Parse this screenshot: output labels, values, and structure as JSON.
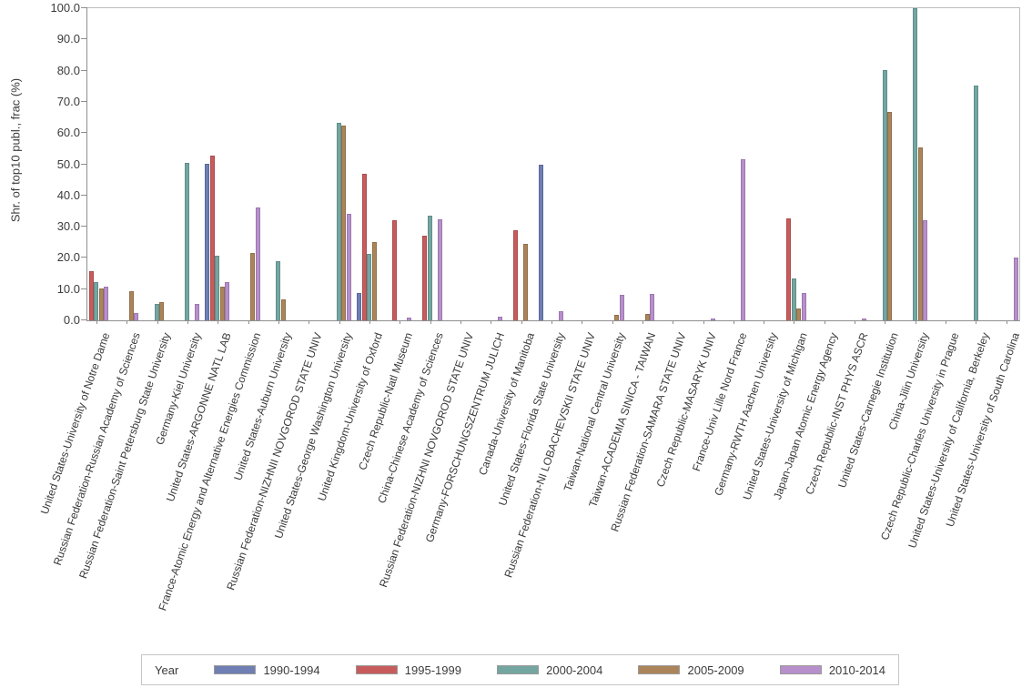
{
  "yaxis": {
    "title": "Shr. of top10 publ., frac (%)",
    "ticks": [
      "0.0",
      "10.0",
      "20.0",
      "30.0",
      "40.0",
      "50.0",
      "60.0",
      "70.0",
      "80.0",
      "90.0",
      "100.0"
    ]
  },
  "legend": {
    "title": "Year"
  },
  "chart_data": {
    "type": "bar",
    "title": "",
    "xlabel": "",
    "ylabel": "Shr. of top10 publ., frac (%)",
    "ylim": [
      0,
      100
    ],
    "ytick_interval": 10,
    "grid": false,
    "legend_position": "bottom",
    "legend_title": "Year",
    "categories": [
      "United States-University of Notre Dame",
      "Russian Federation-Russian Academy of Sciences",
      "Russian Federation-Saint Petersburg State University",
      "Germany-Kiel University",
      "United States-ARGONNE NATL LAB",
      "France-Atomic Energy and Alternative Energies Commission",
      "United States-Auburn University",
      "Russian Federation-NIZHNII NOVGOROD STATE UNIV",
      "United States-George Washington University",
      "United Kingdom-University of Oxford",
      "Czech Republic-Natl Museum",
      "China-Chinese Academy of Sciences",
      "Russian Federation-NIZHNI NOVGOROD STATE UNIV",
      "Germany-FORSCHUNGSZENTRUM JULICH",
      "Canada-University of Manitoba",
      "United States-Florida State University",
      "Russian Federation-NI LOBACHEVSKII STATE UNIV",
      "Taiwan-National Central University",
      "Taiwan-ACADEMIA SINICA - TAIWAN",
      "Russian Federation-SAMARA STATE UNIV",
      "Czech Republic-MASARYK UNIV",
      "France-Univ Lille Nord France",
      "Germany-RWTH Aachen University",
      "United States-University of Michigan",
      "Japan-Japan Atomic Energy Agency",
      "Czech Republic-INST PHYS ASCR",
      "United States-Carnegie Institution",
      "China-Jilin University",
      "Czech Republic-Charles University in Prague",
      "United States-University of California, Berkeley",
      "United States-University of South Carolina"
    ],
    "series": [
      {
        "name": "1990-1994",
        "color": "#6f7eb3",
        "border": "#5b6a99",
        "values": [
          null,
          null,
          null,
          null,
          50.1,
          null,
          null,
          null,
          null,
          8.8,
          null,
          null,
          null,
          null,
          null,
          50.0,
          null,
          null,
          null,
          null,
          null,
          null,
          null,
          null,
          null,
          null,
          null,
          null,
          null,
          null,
          null
        ]
      },
      {
        "name": "1995-1999",
        "color": "#c85c5c",
        "border": "#aa4c4c",
        "values": [
          15.7,
          null,
          null,
          null,
          52.8,
          null,
          null,
          null,
          null,
          46.9,
          32.1,
          27.1,
          null,
          null,
          28.9,
          null,
          null,
          null,
          null,
          null,
          null,
          null,
          null,
          32.7,
          null,
          null,
          null,
          null,
          null,
          null,
          null
        ]
      },
      {
        "name": "2000-2004",
        "color": "#74a6a1",
        "border": "#608f8a",
        "values": [
          12.3,
          null,
          5.2,
          50.5,
          20.6,
          null,
          19.0,
          null,
          63.2,
          21.2,
          null,
          33.6,
          null,
          null,
          null,
          null,
          null,
          null,
          null,
          null,
          null,
          null,
          null,
          13.5,
          null,
          null,
          80.1,
          100.0,
          null,
          75.2,
          null
        ]
      },
      {
        "name": "2005-2009",
        "color": "#ab8559",
        "border": "#916f4a",
        "values": [
          10.1,
          9.2,
          5.8,
          null,
          10.7,
          21.5,
          6.8,
          null,
          62.3,
          25.2,
          null,
          null,
          null,
          null,
          24.5,
          null,
          null,
          1.7,
          2.0,
          null,
          null,
          null,
          null,
          3.7,
          null,
          null,
          66.7,
          55.4,
          null,
          null,
          null
        ]
      },
      {
        "name": "2010-2014",
        "color": "#b68fcb",
        "border": "#9b77ae",
        "values": [
          10.7,
          2.2,
          null,
          5.3,
          12.3,
          36.2,
          null,
          null,
          34.2,
          null,
          0.8,
          32.4,
          null,
          1.2,
          null,
          2.9,
          null,
          8.3,
          8.4,
          null,
          0.7,
          51.7,
          null,
          8.7,
          null,
          0.7,
          null,
          32.1,
          null,
          null,
          20.0
        ]
      }
    ]
  }
}
